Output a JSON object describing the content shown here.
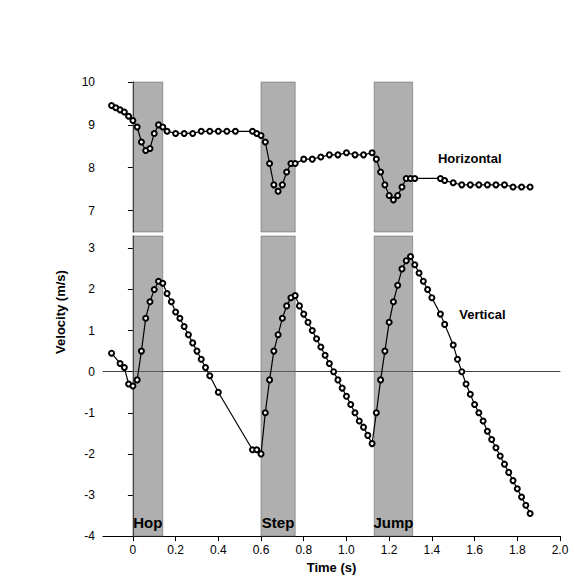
{
  "chart_data": {
    "type": "line",
    "x_label": "Time (s)",
    "y_label": "Velocity (m/s)",
    "xlim": [
      -0.14,
      2.0
    ],
    "xticks": [
      0,
      0.2,
      0.4,
      0.6,
      0.8,
      {
        "value": 1,
        "label": "1.0"
      },
      1.2,
      1.4,
      1.6,
      1.8,
      {
        "value": 2,
        "label": "2.0"
      }
    ],
    "ylim": [
      -4,
      3.3
    ],
    "yticks": [
      -4,
      -3,
      -2,
      -1,
      0,
      1,
      2,
      3
    ],
    "y2lim": [
      6.5,
      10
    ],
    "y2ticks": [
      7,
      8,
      9,
      10
    ],
    "grid": false,
    "marker": "circle",
    "phases": [
      {
        "label": "Hop",
        "start": 0,
        "end": 0.14
      },
      {
        "label": "Step",
        "start": 0.6,
        "end": 0.76
      },
      {
        "label": "Jump",
        "start": 1.13,
        "end": 1.31
      }
    ],
    "series": [
      {
        "name": "Horizontal",
        "axis": "y2",
        "color": "#000000",
        "x": [
          -0.1,
          -0.08,
          -0.06,
          -0.04,
          -0.02,
          0,
          0.02,
          0.04,
          0.06,
          0.08,
          0.1,
          0.12,
          0.14,
          0.16,
          0.2,
          0.24,
          0.28,
          0.32,
          0.36,
          0.4,
          0.44,
          0.48,
          0.56,
          0.58,
          0.6,
          0.62,
          0.64,
          0.66,
          0.68,
          0.7,
          0.72,
          0.74,
          0.76,
          0.8,
          0.84,
          0.88,
          0.92,
          0.96,
          1.0,
          1.04,
          1.08,
          1.12,
          1.14,
          1.16,
          1.18,
          1.2,
          1.22,
          1.24,
          1.26,
          1.28,
          1.3,
          1.32,
          1.44,
          1.46,
          1.5,
          1.54,
          1.58,
          1.62,
          1.66,
          1.7,
          1.74,
          1.78,
          1.82,
          1.86
        ],
        "values": [
          9.45,
          9.4,
          9.35,
          9.3,
          9.2,
          9.1,
          8.95,
          8.6,
          8.4,
          8.45,
          8.8,
          9.0,
          8.95,
          8.85,
          8.8,
          8.8,
          8.8,
          8.85,
          8.85,
          8.85,
          8.85,
          8.85,
          8.85,
          8.8,
          8.75,
          8.6,
          8.1,
          7.6,
          7.45,
          7.6,
          7.9,
          8.1,
          8.1,
          8.2,
          8.2,
          8.25,
          8.3,
          8.3,
          8.35,
          8.3,
          8.3,
          8.35,
          8.2,
          7.9,
          7.6,
          7.35,
          7.25,
          7.35,
          7.55,
          7.75,
          7.75,
          7.75,
          7.75,
          7.7,
          7.65,
          7.6,
          7.6,
          7.6,
          7.6,
          7.6,
          7.6,
          7.55,
          7.55,
          7.55
        ]
      },
      {
        "name": "Vertical",
        "color": "#000000",
        "x": [
          -0.1,
          -0.06,
          -0.04,
          -0.02,
          0,
          0.02,
          0.04,
          0.06,
          0.08,
          0.1,
          0.12,
          0.14,
          0.16,
          0.18,
          0.2,
          0.22,
          0.24,
          0.26,
          0.28,
          0.3,
          0.32,
          0.34,
          0.36,
          0.4,
          0.56,
          0.58,
          0.6,
          0.62,
          0.64,
          0.66,
          0.68,
          0.7,
          0.72,
          0.74,
          0.76,
          0.78,
          0.8,
          0.82,
          0.84,
          0.86,
          0.88,
          0.9,
          0.92,
          0.94,
          0.96,
          0.98,
          1.0,
          1.02,
          1.04,
          1.06,
          1.08,
          1.1,
          1.12,
          1.14,
          1.16,
          1.18,
          1.2,
          1.22,
          1.24,
          1.26,
          1.28,
          1.3,
          1.32,
          1.34,
          1.36,
          1.38,
          1.4,
          1.44,
          1.46,
          1.5,
          1.52,
          1.54,
          1.56,
          1.58,
          1.6,
          1.62,
          1.64,
          1.66,
          1.68,
          1.7,
          1.72,
          1.74,
          1.76,
          1.78,
          1.8,
          1.82,
          1.84,
          1.86
        ],
        "values": [
          0.45,
          0.2,
          0.1,
          -0.3,
          -0.35,
          -0.2,
          0.5,
          1.3,
          1.7,
          2.0,
          2.2,
          2.15,
          1.9,
          1.7,
          1.45,
          1.3,
          1.1,
          0.9,
          0.7,
          0.5,
          0.3,
          0.1,
          -0.1,
          -0.5,
          -1.9,
          -1.9,
          -2.0,
          -1.0,
          -0.2,
          0.5,
          0.9,
          1.3,
          1.6,
          1.8,
          1.85,
          1.6,
          1.4,
          1.2,
          1.0,
          0.8,
          0.6,
          0.4,
          0.2,
          0.0,
          -0.2,
          -0.4,
          -0.6,
          -0.8,
          -1.0,
          -1.2,
          -1.35,
          -1.55,
          -1.75,
          -1.0,
          -0.2,
          0.5,
          1.2,
          1.7,
          2.1,
          2.5,
          2.7,
          2.8,
          2.6,
          2.4,
          2.2,
          2.0,
          1.8,
          1.4,
          1.15,
          0.65,
          0.3,
          0.0,
          -0.3,
          -0.55,
          -0.8,
          -1.0,
          -1.2,
          -1.45,
          -1.65,
          -1.85,
          -2.05,
          -2.25,
          -2.45,
          -2.65,
          -2.85,
          -3.05,
          -3.25,
          -3.45
        ]
      }
    ]
  }
}
